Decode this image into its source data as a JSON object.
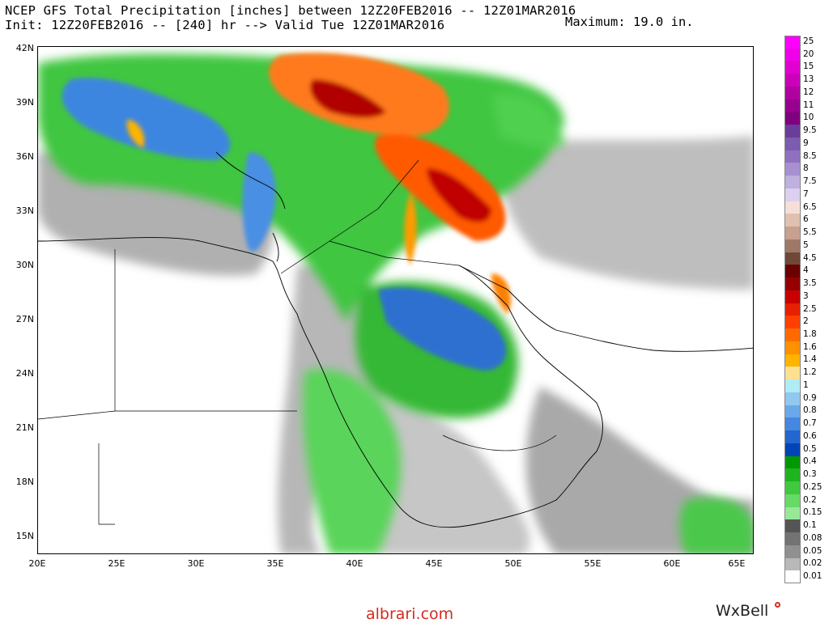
{
  "header": {
    "line1": "NCEP GFS Total Precipitation [inches] between 12Z20FEB2016 -- 12Z01MAR2016",
    "line2": "Init: 12Z20FEB2016 -- [240] hr --> Valid Tue 12Z01MAR2016",
    "maximum": "Maximum: 19.0 in."
  },
  "lat_labels": [
    "42N",
    "39N",
    "36N",
    "33N",
    "30N",
    "27N",
    "24N",
    "21N",
    "18N",
    "15N"
  ],
  "lon_labels": [
    "20E",
    "25E",
    "30E",
    "35E",
    "40E",
    "45E",
    "50E",
    "55E",
    "60E",
    "65E"
  ],
  "legend": [
    {
      "label": "25",
      "color": "#ff00ff"
    },
    {
      "label": "20",
      "color": "#f000e8"
    },
    {
      "label": "15",
      "color": "#e000d0"
    },
    {
      "label": "13",
      "color": "#cc00b8"
    },
    {
      "label": "12",
      "color": "#b000a0"
    },
    {
      "label": "11",
      "color": "#980090"
    },
    {
      "label": "10",
      "color": "#800080"
    },
    {
      "label": "9.5",
      "color": "#6a3d9a"
    },
    {
      "label": "9",
      "color": "#7a5cb0"
    },
    {
      "label": "8.5",
      "color": "#9070c0"
    },
    {
      "label": "8",
      "color": "#a890d0"
    },
    {
      "label": "7.5",
      "color": "#c0b0e0"
    },
    {
      "label": "7",
      "color": "#dcd0f0"
    },
    {
      "label": "6.5",
      "color": "#f5dfd8"
    },
    {
      "label": "6",
      "color": "#e0c0b0"
    },
    {
      "label": "5.5",
      "color": "#c8a090"
    },
    {
      "label": "5",
      "color": "#a07868"
    },
    {
      "label": "4.5",
      "color": "#704838"
    },
    {
      "label": "4",
      "color": "#6a0000"
    },
    {
      "label": "3.5",
      "color": "#960000"
    },
    {
      "label": "3",
      "color": "#c80000"
    },
    {
      "label": "2.5",
      "color": "#e62000"
    },
    {
      "label": "2",
      "color": "#ff4000"
    },
    {
      "label": "1.8",
      "color": "#ff6a00"
    },
    {
      "label": "1.6",
      "color": "#ff9000"
    },
    {
      "label": "1.4",
      "color": "#ffb400"
    },
    {
      "label": "1.2",
      "color": "#ffe090"
    },
    {
      "label": "1",
      "color": "#b0ecf8"
    },
    {
      "label": "0.9",
      "color": "#90c8f0"
    },
    {
      "label": "0.8",
      "color": "#6aa8ea"
    },
    {
      "label": "0.7",
      "color": "#4488e0"
    },
    {
      "label": "0.6",
      "color": "#2266d0"
    },
    {
      "label": "0.5",
      "color": "#0044b8"
    },
    {
      "label": "0.4",
      "color": "#009a00"
    },
    {
      "label": "0.3",
      "color": "#1fb41f"
    },
    {
      "label": "0.25",
      "color": "#40c840"
    },
    {
      "label": "0.2",
      "color": "#66da66"
    },
    {
      "label": "0.15",
      "color": "#98e898"
    },
    {
      "label": "0.1",
      "color": "#555555"
    },
    {
      "label": "0.08",
      "color": "#737373"
    },
    {
      "label": "0.05",
      "color": "#909090"
    },
    {
      "label": "0.02",
      "color": "#b8b8b8"
    },
    {
      "label": "0.01",
      "color": "#ffffff"
    }
  ],
  "footer": {
    "watermark": "albrari.com",
    "brand": "WxBell"
  }
}
